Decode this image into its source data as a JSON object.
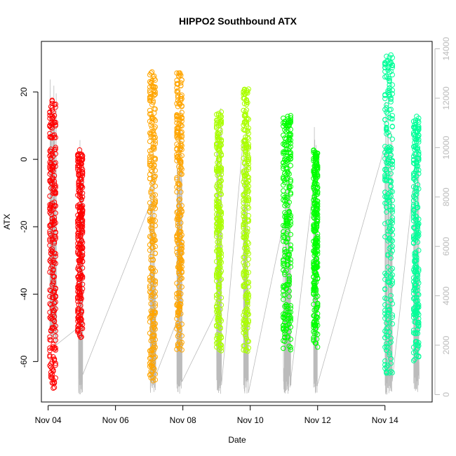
{
  "chart_data": {
    "type": "scatter",
    "title": "HIPPO2 Southbound ATX",
    "xlabel": "Date",
    "ylabel": "ATX",
    "x_ticks": [
      "Nov 04",
      "Nov 06",
      "Nov 08",
      "Nov 10",
      "Nov 12",
      "Nov 14"
    ],
    "y_ticks": [
      "-60",
      "-40",
      "-20",
      "0",
      "20"
    ],
    "y_right_ticks": [
      "0",
      "2000",
      "4000",
      "6000",
      "8000",
      "10000",
      "12000",
      "14000"
    ],
    "xlim_days": [
      3.8,
      15.4
    ],
    "ylim": [
      -72,
      35
    ],
    "y_right_lim": [
      -300,
      14300
    ],
    "legend": "none",
    "grid": false,
    "colors": {
      "axis": "#000000",
      "right_axis": "#bbbbbb",
      "background_line": "#bbbbbb"
    },
    "series": [
      {
        "color": "#ff0000",
        "x_start": 4.05,
        "x_end": 4.22,
        "y_min": -68,
        "y_max": 19
      },
      {
        "color": "#ff0000",
        "x_start": 4.88,
        "x_end": 5.02,
        "y_min": -53,
        "y_max": 3
      },
      {
        "color": "#ffa500",
        "x_start": 7.02,
        "x_end": 7.18,
        "y_min": -66,
        "y_max": 26
      },
      {
        "color": "#ffa500",
        "x_start": 7.82,
        "x_end": 7.97,
        "y_min": -57,
        "y_max": 26
      },
      {
        "color": "#aaff00",
        "x_start": 9.0,
        "x_end": 9.14,
        "y_min": -57,
        "y_max": 15
      },
      {
        "color": "#aaff00",
        "x_start": 9.8,
        "x_end": 9.95,
        "y_min": -57,
        "y_max": 21
      },
      {
        "color": "#00ff00",
        "x_start": 10.98,
        "x_end": 11.2,
        "y_min": -57,
        "y_max": 13
      },
      {
        "color": "#00ff00",
        "x_start": 11.88,
        "x_end": 12.0,
        "y_min": -56,
        "y_max": 3
      },
      {
        "color": "#00ff99",
        "x_start": 14.0,
        "x_end": 14.22,
        "y_min": -64,
        "y_max": 31
      },
      {
        "color": "#00ff99",
        "x_start": 14.85,
        "x_end": 15.0,
        "y_min": -60,
        "y_max": 13
      }
    ]
  }
}
